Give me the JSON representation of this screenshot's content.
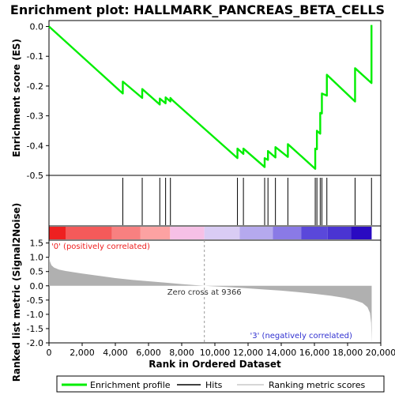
{
  "chart_data": {
    "type": "line",
    "title": "Enrichment plot: HALLMARK_PANCREAS_BETA_CELLS",
    "es_panel": {
      "ylabel": "Enrichment score (ES)",
      "ylim": [
        -0.5,
        0.02
      ],
      "yticks": [
        0.0,
        -0.1,
        -0.2,
        -0.3,
        -0.4,
        -0.5
      ],
      "ytick_labels": [
        "0.0",
        "-0.1",
        "-0.2",
        "-0.3",
        "-0.4",
        "-0.5"
      ],
      "series": [
        {
          "name": "Enrichment profile",
          "color": "#00ee00",
          "x": [
            0,
            4450,
            4450,
            5620,
            5620,
            6680,
            6680,
            7030,
            7030,
            7320,
            7320,
            7450,
            11360,
            11360,
            11720,
            11720,
            13000,
            13000,
            13200,
            13200,
            13650,
            13650,
            14400,
            14400,
            16050,
            16050,
            16150,
            16150,
            16350,
            16350,
            16450,
            16450,
            16750,
            16750,
            18450,
            18450,
            19440,
            19440
          ],
          "y": [
            0.0,
            -0.225,
            -0.185,
            -0.24,
            -0.21,
            -0.262,
            -0.242,
            -0.258,
            -0.238,
            -0.252,
            -0.24,
            -0.248,
            -0.442,
            -0.41,
            -0.428,
            -0.41,
            -0.472,
            -0.442,
            -0.448,
            -0.418,
            -0.44,
            -0.405,
            -0.438,
            -0.395,
            -0.478,
            -0.41,
            -0.412,
            -0.35,
            -0.36,
            -0.29,
            -0.292,
            -0.225,
            -0.232,
            -0.162,
            -0.252,
            -0.14,
            -0.19,
            0.005
          ]
        }
      ]
    },
    "hits": {
      "name": "Hits",
      "x": [
        4450,
        5620,
        6680,
        7030,
        7320,
        11360,
        11720,
        13000,
        13200,
        13650,
        14400,
        16050,
        16150,
        16350,
        16450,
        16750,
        18450,
        19440
      ]
    },
    "rank_bar": {
      "segments": [
        {
          "x0": 0,
          "x1": 1000,
          "color": "#ee2020"
        },
        {
          "x0": 1000,
          "x1": 3800,
          "color": "#f45a5a"
        },
        {
          "x0": 3800,
          "x1": 5500,
          "color": "#f88080"
        },
        {
          "x0": 5500,
          "x1": 7300,
          "color": "#fca2a2"
        },
        {
          "x0": 7300,
          "x1": 9366,
          "color": "#f6c0e6"
        },
        {
          "x0": 9366,
          "x1": 11500,
          "color": "#d9ccf4"
        },
        {
          "x0": 11500,
          "x1": 13500,
          "color": "#b5a9ee"
        },
        {
          "x0": 13500,
          "x1": 15200,
          "color": "#8a7ae6"
        },
        {
          "x0": 15200,
          "x1": 16800,
          "color": "#5a48da"
        },
        {
          "x0": 16800,
          "x1": 18200,
          "color": "#4a34d2"
        },
        {
          "x0": 18200,
          "x1": 19450,
          "color": "#2a0ac2"
        }
      ]
    },
    "metric_panel": {
      "ylabel": "Ranked list metric (Signal2Noise)",
      "xlabel": "Rank in Ordered Dataset",
      "ylim": [
        -2.0,
        1.6
      ],
      "yticks": [
        1.5,
        1.0,
        0.5,
        0.0,
        -0.5,
        -1.0,
        -1.5,
        -2.0
      ],
      "ytick_labels": [
        "1.5",
        "1.0",
        "0.5",
        "0.0",
        "-0.5",
        "-1.0",
        "-1.5",
        "-2.0"
      ],
      "xlim": [
        0,
        20000
      ],
      "xticks": [
        0,
        2000,
        4000,
        6000,
        8000,
        10000,
        12000,
        14000,
        16000,
        18000,
        20000
      ],
      "xtick_labels": [
        "0",
        "2,000",
        "4,000",
        "6,000",
        "8,000",
        "10,000",
        "12,000",
        "14,000",
        "16,000",
        "18,000",
        "20,000"
      ],
      "curve": {
        "name": "Ranking metric scores",
        "color": "#b0b0b0",
        "x": [
          0,
          60,
          150,
          300,
          600,
          1000,
          2000,
          3000,
          4000,
          5000,
          6000,
          7000,
          8000,
          9366,
          10000,
          11000,
          12000,
          13000,
          14000,
          15000,
          16000,
          17000,
          17800,
          18400,
          18900,
          19200,
          19350,
          19420,
          19450
        ],
        "y": [
          1.05,
          0.85,
          0.72,
          0.64,
          0.57,
          0.52,
          0.43,
          0.35,
          0.27,
          0.21,
          0.16,
          0.11,
          0.06,
          0.0,
          -0.02,
          -0.05,
          -0.09,
          -0.13,
          -0.17,
          -0.22,
          -0.28,
          -0.35,
          -0.42,
          -0.5,
          -0.6,
          -0.75,
          -0.95,
          -1.3,
          -2.0
        ]
      },
      "zero_cross_label": "Zero cross at 9366",
      "zero_cross_x": 9366,
      "pos_label": "'0' (positively correlated)",
      "neg_label": "'3' (negatively correlated)",
      "pos_color": "#ee2020",
      "neg_color": "#3030d0"
    },
    "legend": {
      "placement": "bottom",
      "entries": [
        {
          "label": "Enrichment profile",
          "color": "#00ee00"
        },
        {
          "label": "Hits",
          "color": "#000000"
        },
        {
          "label": "Ranking metric scores",
          "color": "#c8c8c8"
        }
      ]
    }
  }
}
